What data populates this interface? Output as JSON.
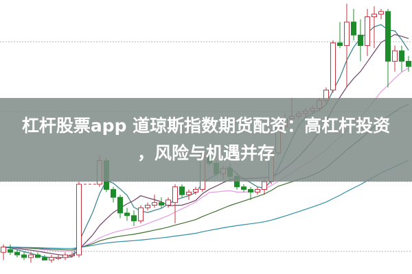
{
  "banner": {
    "title_line1": "杠杆股票app 道琼斯指数期货配资：高杠杆投资",
    "title_line2": "，风险与机遇并存"
  },
  "colors": {
    "up": "#c4303c",
    "down": "#1e8c2a",
    "grid": "#b0b0b0",
    "ma": [
      "#2f7f86",
      "#6e3f62",
      "#e49be0",
      "#3d6e2c",
      "#2f8ea6"
    ]
  },
  "chart_data": {
    "type": "candlestick",
    "title": "",
    "grid": true,
    "ylim": [
      0,
      103
    ],
    "moving_averages": [
      5,
      10,
      20,
      30,
      60
    ],
    "candles": [
      [
        7,
        10,
        4,
        9
      ],
      [
        8,
        10,
        6,
        7
      ],
      [
        7,
        8,
        5,
        6
      ],
      [
        6,
        7,
        4,
        5
      ],
      [
        5,
        7,
        3,
        6
      ],
      [
        6,
        7,
        5,
        5
      ],
      [
        5,
        6,
        4,
        4
      ],
      [
        4,
        6,
        3,
        5
      ],
      [
        5,
        6,
        4,
        5
      ],
      [
        5,
        7,
        4,
        6
      ],
      [
        6,
        7,
        5,
        6
      ],
      [
        6,
        34,
        5,
        33
      ],
      [
        33,
        33,
        33,
        33
      ],
      [
        33,
        33,
        33,
        33
      ],
      [
        33,
        44,
        32,
        42
      ],
      [
        42,
        43,
        30,
        31
      ],
      [
        31,
        32,
        26,
        28
      ],
      [
        28,
        29,
        20,
        22
      ],
      [
        22,
        24,
        19,
        21
      ],
      [
        21,
        23,
        17,
        19
      ],
      [
        19,
        25,
        18,
        24
      ],
      [
        24,
        26,
        23,
        25
      ],
      [
        25,
        29,
        24,
        26
      ],
      [
        26,
        28,
        24,
        25
      ],
      [
        25,
        28,
        24,
        27
      ],
      [
        26,
        33,
        18,
        32
      ],
      [
        32,
        33,
        28,
        29
      ],
      [
        29,
        31,
        27,
        30
      ],
      [
        30,
        32,
        29,
        31
      ],
      [
        31,
        46,
        30,
        45
      ],
      [
        45,
        46,
        40,
        41
      ],
      [
        41,
        42,
        36,
        37
      ],
      [
        37,
        40,
        35,
        39
      ],
      [
        39,
        41,
        34,
        36
      ],
      [
        36,
        37,
        31,
        32
      ],
      [
        32,
        33,
        30,
        31
      ],
      [
        31,
        32,
        27,
        30
      ],
      [
        30,
        32,
        29,
        31
      ],
      [
        31,
        35,
        29,
        34
      ],
      [
        34,
        46,
        33,
        45
      ],
      [
        45,
        56,
        44,
        55
      ],
      [
        55,
        60,
        54,
        58
      ],
      [
        58,
        66,
        57,
        59
      ],
      [
        59,
        61,
        58,
        60
      ],
      [
        60,
        62,
        59,
        61
      ],
      [
        61,
        63,
        60,
        62
      ],
      [
        62,
        66,
        61,
        65
      ],
      [
        65,
        70,
        64,
        69
      ],
      [
        69,
        88,
        68,
        87
      ],
      [
        87,
        95,
        85,
        86
      ],
      [
        86,
        102,
        70,
        95
      ],
      [
        95,
        100,
        88,
        90
      ],
      [
        90,
        96,
        80,
        86
      ],
      [
        86,
        100,
        82,
        97
      ],
      [
        97,
        101,
        85,
        98
      ],
      [
        98,
        100,
        96,
        99
      ],
      [
        99,
        100,
        70,
        80
      ],
      [
        80,
        86,
        76,
        84
      ],
      [
        84,
        86,
        76,
        80
      ],
      [
        80,
        82,
        76,
        78
      ]
    ]
  }
}
